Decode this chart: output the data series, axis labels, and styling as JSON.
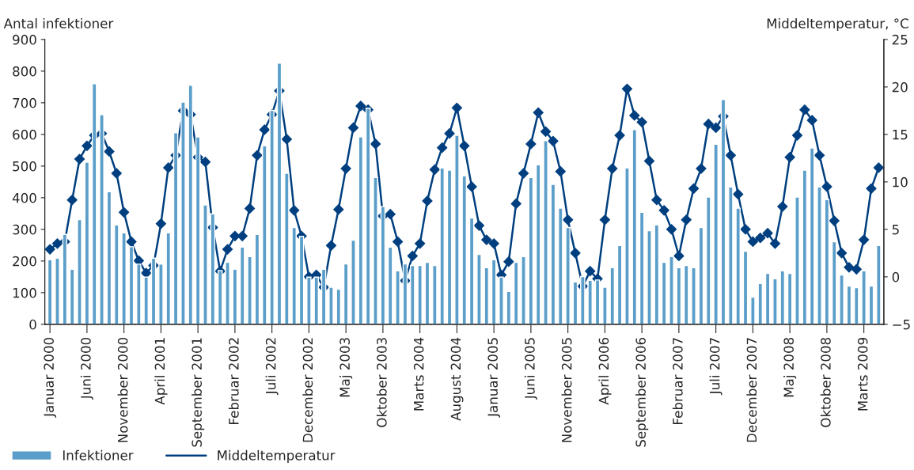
{
  "chart_data": {
    "type": "bar",
    "ylabel": "Antal infektioner",
    "y2label": "Middeltemperatur, °C",
    "categories": [
      "Januar 2000",
      null,
      null,
      null,
      null,
      "Juni 2000",
      null,
      null,
      null,
      null,
      "November 2000",
      null,
      null,
      null,
      null,
      "April 2001",
      null,
      null,
      null,
      null,
      "September 2001",
      null,
      null,
      null,
      null,
      "Februar 2002",
      null,
      null,
      null,
      null,
      "Juli 2002",
      null,
      null,
      null,
      null,
      "December 2002",
      null,
      null,
      null,
      null,
      "Maj 2003",
      null,
      null,
      null,
      null,
      "Oktober 2003",
      null,
      null,
      null,
      null,
      "Marts 2004",
      null,
      null,
      null,
      null,
      "August 2004",
      null,
      null,
      null,
      null,
      "Januar 2005",
      null,
      null,
      null,
      null,
      "Juni 2005",
      null,
      null,
      null,
      null,
      "November 2005",
      null,
      null,
      null,
      null,
      "April 2006",
      null,
      null,
      null,
      null,
      "September 2006",
      null,
      null,
      null,
      null,
      "Februar 2007",
      null,
      null,
      null,
      null,
      "Juli 2007",
      null,
      null,
      null,
      null,
      "December 2007",
      null,
      null,
      null,
      null,
      "Maj 2008",
      null,
      null,
      null,
      null,
      "Oktober 2008",
      null,
      null,
      null,
      null,
      "Marts 2009",
      null,
      null
    ],
    "series": [
      {
        "name": "Infektioner",
        "color": "#5b9ec9",
        "values": [
          204,
          209,
          284,
          174,
          331,
          512,
          760,
          662,
          419,
          314,
          289,
          245,
          190,
          149,
          209,
          190,
          289,
          605,
          702,
          755,
          592,
          377,
          349,
          170,
          196,
          174,
          244,
          214,
          284,
          564,
          676,
          825,
          477,
          306,
          278,
          149,
          149,
          174,
          117,
          111,
          191,
          266,
          592,
          683,
          464,
          372,
          244,
          169,
          191,
          186,
          186,
          196,
          186,
          494,
          487,
          597,
          469,
          336,
          221,
          179,
          204,
          149,
          104,
          196,
          214,
          464,
          504,
          580,
          442,
          367,
          306,
          134,
          151,
          139,
          140,
          117,
          179,
          249,
          494,
          615,
          354,
          296,
          314,
          196,
          214,
          179,
          186,
          179,
          306,
          402,
          569,
          710,
          434,
          367,
          231,
          86,
          129,
          161,
          144,
          169,
          161,
          402,
          487,
          557,
          434,
          394,
          261,
          156,
          121,
          116,
          169,
          121,
          249
        ]
      },
      {
        "name": "Middeltemperatur",
        "type": "line",
        "axis": "y2",
        "color": "#003f7f",
        "marker": "diamond",
        "values": [
          2.9,
          3.5,
          3.7,
          8.1,
          12.4,
          13.8,
          14.9,
          15.1,
          13.2,
          10.9,
          6.8,
          3.7,
          1.7,
          0.4,
          1.2,
          5.6,
          11.5,
          12.8,
          17.5,
          17.1,
          12.6,
          12.1,
          5.2,
          0.6,
          2.9,
          4.3,
          4.3,
          7.2,
          12.8,
          15.5,
          17.1,
          19.6,
          14.5,
          7.0,
          4.3,
          0.0,
          0.2,
          -1.1,
          3.3,
          7.1,
          11.4,
          15.7,
          18.0,
          17.6,
          14.0,
          6.4,
          6.6,
          3.7,
          -0.4,
          2.2,
          3.5,
          8.0,
          11.3,
          13.6,
          15.1,
          17.8,
          13.8,
          9.5,
          5.4,
          3.9,
          3.5,
          0.2,
          1.6,
          7.7,
          10.9,
          14.0,
          17.3,
          15.3,
          14.3,
          11.1,
          6.0,
          2.5,
          -1.0,
          0.6,
          -0.2,
          6.0,
          11.4,
          14.9,
          19.8,
          17.0,
          16.3,
          12.2,
          8.1,
          7.0,
          5.0,
          2.2,
          6.0,
          9.3,
          11.4,
          16.1,
          15.7,
          16.9,
          12.8,
          8.7,
          5.0,
          3.7,
          4.1,
          4.6,
          3.5,
          7.4,
          12.6,
          14.9,
          17.6,
          16.5,
          12.8,
          9.5,
          5.9,
          2.5,
          1.0,
          0.8,
          3.9,
          9.3,
          11.5
        ]
      }
    ],
    "ylim": [
      0,
      900
    ],
    "yticks": [
      0,
      100,
      200,
      300,
      400,
      500,
      600,
      700,
      800,
      900
    ],
    "y2lim": [
      -5,
      25
    ],
    "y2ticks": [
      {
        "value": -5,
        "label": "−5"
      },
      0,
      5,
      10,
      15,
      20,
      25
    ],
    "legend": "bottom left",
    "grid": false
  }
}
